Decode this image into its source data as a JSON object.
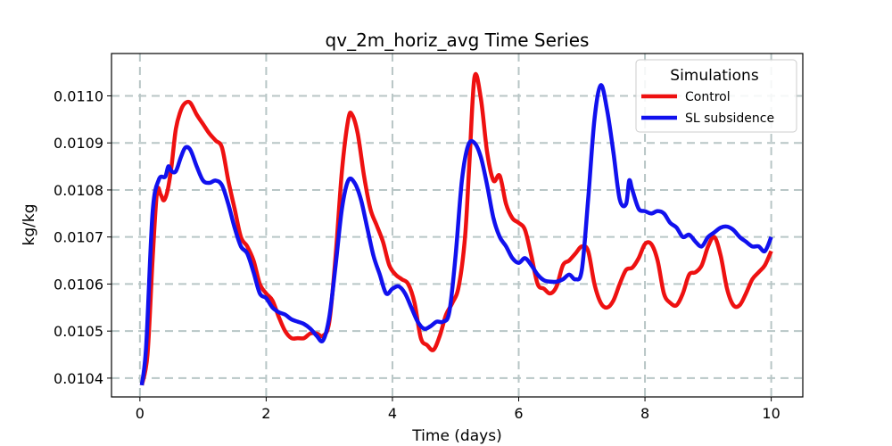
{
  "chart_data": {
    "type": "line",
    "title": "qv_2m_horiz_avg Time Series",
    "xlabel": "Time (days)",
    "ylabel": "kg/kg",
    "xlim": [
      -0.45,
      10.5
    ],
    "ylim": [
      0.01036,
      0.01109
    ],
    "xticks": [
      0,
      2,
      4,
      6,
      8,
      10
    ],
    "xtick_labels": [
      "0",
      "2",
      "4",
      "6",
      "8",
      "10"
    ],
    "yticks": [
      0.0104,
      0.0105,
      0.0106,
      0.0107,
      0.0108,
      0.0109,
      0.011
    ],
    "ytick_labels": [
      "0.0104",
      "0.0105",
      "0.0106",
      "0.0107",
      "0.0108",
      "0.0109",
      "0.0110"
    ],
    "grid": true,
    "legend": {
      "title": "Simulations",
      "position": "top-right"
    },
    "series": [
      {
        "name": "Control",
        "color": "#ee1111",
        "x": [
          0.03,
          0.12,
          0.2,
          0.27,
          0.33,
          0.38,
          0.44,
          0.5,
          0.57,
          0.65,
          0.72,
          0.8,
          0.9,
          1.0,
          1.1,
          1.2,
          1.3,
          1.4,
          1.5,
          1.6,
          1.7,
          1.8,
          1.9,
          2.0,
          2.1,
          2.2,
          2.3,
          2.4,
          2.5,
          2.6,
          2.7,
          2.8,
          2.9,
          3.0,
          3.1,
          3.2,
          3.3,
          3.36,
          3.45,
          3.55,
          3.65,
          3.75,
          3.85,
          3.95,
          4.05,
          4.15,
          4.25,
          4.35,
          4.45,
          4.55,
          4.65,
          4.75,
          4.85,
          4.95,
          5.05,
          5.15,
          5.22,
          5.3,
          5.4,
          5.5,
          5.6,
          5.7,
          5.8,
          5.9,
          6.0,
          6.1,
          6.2,
          6.3,
          6.4,
          6.5,
          6.6,
          6.7,
          6.8,
          6.9,
          7.0,
          7.1,
          7.2,
          7.3,
          7.4,
          7.5,
          7.6,
          7.7,
          7.8,
          7.9,
          8.0,
          8.1,
          8.2,
          8.3,
          8.4,
          8.5,
          8.6,
          8.7,
          8.8,
          8.9,
          9.0,
          9.1,
          9.2,
          9.3,
          9.4,
          9.5,
          9.6,
          9.7,
          9.8,
          9.9,
          10.0
        ],
        "values": [
          0.010385,
          0.01045,
          0.01065,
          0.010795,
          0.01079,
          0.010778,
          0.0108,
          0.01085,
          0.01093,
          0.01097,
          0.010985,
          0.010985,
          0.01096,
          0.01094,
          0.01092,
          0.010905,
          0.01089,
          0.01082,
          0.01076,
          0.0107,
          0.01068,
          0.01065,
          0.0106,
          0.01058,
          0.010565,
          0.01053,
          0.0105,
          0.010485,
          0.010485,
          0.010485,
          0.010495,
          0.010495,
          0.01049,
          0.01052,
          0.01066,
          0.01084,
          0.01095,
          0.01096,
          0.01092,
          0.01083,
          0.01076,
          0.010725,
          0.01069,
          0.01064,
          0.01062,
          0.01061,
          0.0106,
          0.01056,
          0.010485,
          0.01047,
          0.01046,
          0.01049,
          0.010535,
          0.01056,
          0.010595,
          0.0107,
          0.01086,
          0.01104,
          0.010995,
          0.01088,
          0.01082,
          0.01083,
          0.01077,
          0.01074,
          0.01073,
          0.010715,
          0.01066,
          0.0106,
          0.01059,
          0.01058,
          0.010595,
          0.01064,
          0.01065,
          0.010665,
          0.01068,
          0.01067,
          0.0106,
          0.01056,
          0.01055,
          0.010565,
          0.0106,
          0.01063,
          0.010635,
          0.010655,
          0.010685,
          0.010685,
          0.01065,
          0.01058,
          0.01056,
          0.010555,
          0.01058,
          0.01062,
          0.010625,
          0.01064,
          0.01068,
          0.0107,
          0.01066,
          0.01059,
          0.010555,
          0.010555,
          0.01058,
          0.01061,
          0.010625,
          0.01064,
          0.01067
        ]
      },
      {
        "name": "SL subsidence",
        "color": "#1111ee",
        "x": [
          0.03,
          0.1,
          0.2,
          0.3,
          0.4,
          0.45,
          0.5,
          0.57,
          0.65,
          0.72,
          0.8,
          0.9,
          1.0,
          1.1,
          1.2,
          1.3,
          1.4,
          1.5,
          1.6,
          1.7,
          1.8,
          1.9,
          2.0,
          2.1,
          2.2,
          2.3,
          2.4,
          2.5,
          2.6,
          2.7,
          2.8,
          2.9,
          3.0,
          3.1,
          3.2,
          3.3,
          3.4,
          3.5,
          3.6,
          3.7,
          3.8,
          3.9,
          4.0,
          4.1,
          4.2,
          4.3,
          4.4,
          4.5,
          4.6,
          4.7,
          4.8,
          4.9,
          5.0,
          5.1,
          5.2,
          5.3,
          5.4,
          5.5,
          5.6,
          5.7,
          5.8,
          5.9,
          6.0,
          6.1,
          6.2,
          6.3,
          6.4,
          6.5,
          6.6,
          6.7,
          6.8,
          6.9,
          7.0,
          7.1,
          7.2,
          7.3,
          7.4,
          7.5,
          7.6,
          7.7,
          7.75,
          7.8,
          7.9,
          8.0,
          8.1,
          8.2,
          8.3,
          8.4,
          8.5,
          8.6,
          8.7,
          8.8,
          8.9,
          9.0,
          9.1,
          9.2,
          9.3,
          9.4,
          9.5,
          9.6,
          9.7,
          9.8,
          9.9,
          10.0
        ],
        "values": [
          0.010385,
          0.01047,
          0.01075,
          0.010822,
          0.010828,
          0.01085,
          0.01084,
          0.01084,
          0.01087,
          0.01089,
          0.010885,
          0.01085,
          0.01082,
          0.010815,
          0.01082,
          0.01081,
          0.01077,
          0.01072,
          0.01068,
          0.010665,
          0.010625,
          0.01058,
          0.01057,
          0.01055,
          0.01054,
          0.010535,
          0.010525,
          0.01052,
          0.010515,
          0.010505,
          0.01049,
          0.01048,
          0.01053,
          0.01064,
          0.01076,
          0.01082,
          0.010815,
          0.01078,
          0.01072,
          0.01066,
          0.01062,
          0.01058,
          0.01059,
          0.010595,
          0.01058,
          0.01055,
          0.01052,
          0.010505,
          0.01051,
          0.01052,
          0.01052,
          0.01054,
          0.01066,
          0.01082,
          0.010895,
          0.0109,
          0.01087,
          0.01081,
          0.01074,
          0.0107,
          0.01068,
          0.010655,
          0.010645,
          0.010655,
          0.01064,
          0.01062,
          0.010608,
          0.010605,
          0.010605,
          0.01061,
          0.01062,
          0.01061,
          0.01063,
          0.01078,
          0.01095,
          0.0110225,
          0.01097,
          0.01088,
          0.01078,
          0.01077,
          0.01082,
          0.0108,
          0.01076,
          0.010755,
          0.01075,
          0.010755,
          0.01075,
          0.01073,
          0.01072,
          0.0107,
          0.010705,
          0.01069,
          0.01068,
          0.0107,
          0.01071,
          0.01072,
          0.010722,
          0.010715,
          0.0107,
          0.01069,
          0.01068,
          0.01068,
          0.01067,
          0.0107
        ]
      }
    ]
  }
}
